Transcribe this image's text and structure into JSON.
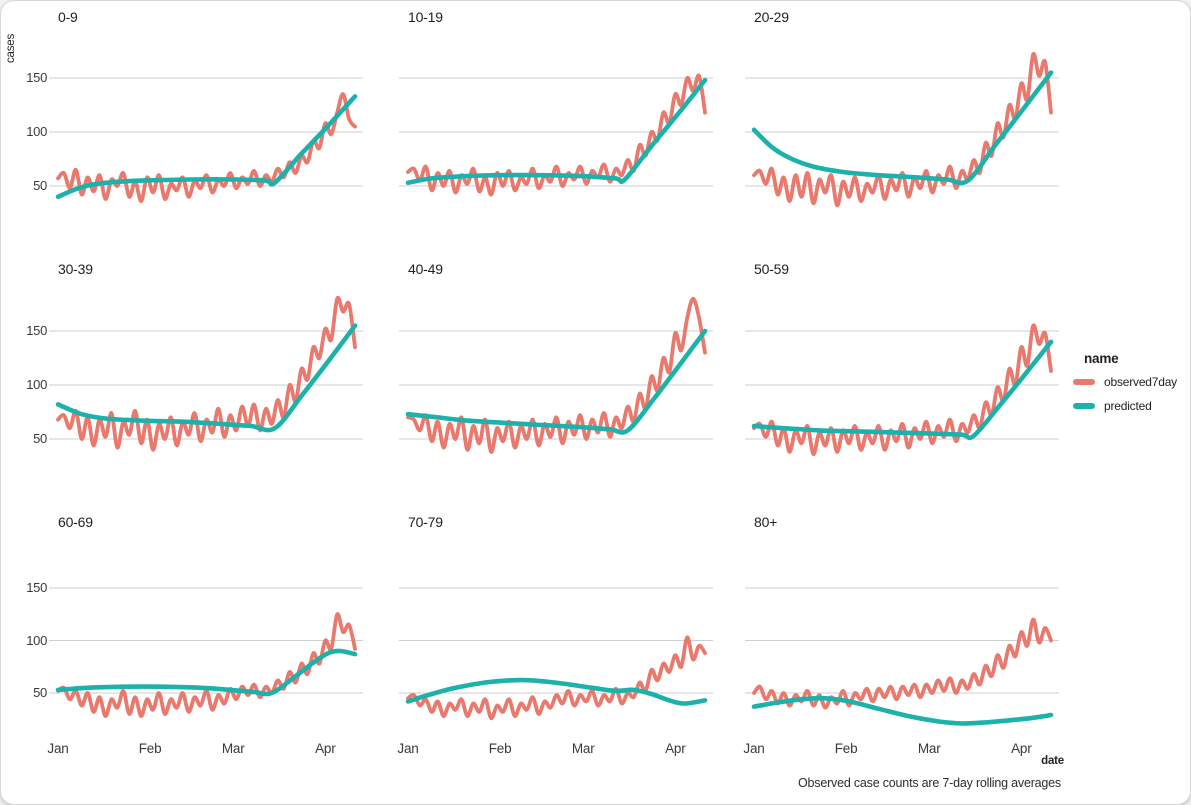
{
  "page": {
    "caption": "Observed case counts are 7-day rolling averages"
  },
  "legend": {
    "title": "name",
    "items": [
      {
        "label": "observed7day",
        "color": "#e9786d"
      },
      {
        "label": "predicted",
        "color": "#1cb1ab"
      }
    ]
  },
  "chart_data": {
    "type": "line",
    "title": "",
    "xlabel": "date",
    "ylabel": "cases",
    "x_ticks": [
      "Jan",
      "Feb",
      "Mar",
      "Apr"
    ],
    "x_tick_days": [
      0,
      31,
      59,
      90
    ],
    "y_ticks": [
      50,
      100,
      150
    ],
    "x_domain_days": [
      0,
      100
    ],
    "y_domain": [
      15,
      190
    ],
    "grid": true,
    "legend_position": "right",
    "observed_sample_interval_days": 2,
    "series_colors": {
      "observed7day": "#e9786d",
      "predicted": "#1cb1ab"
    },
    "facets": [
      {
        "label": "0-9",
        "observed7day": [
          57,
          62,
          48,
          65,
          42,
          58,
          45,
          60,
          38,
          56,
          50,
          62,
          40,
          54,
          36,
          58,
          44,
          60,
          38,
          52,
          46,
          58,
          40,
          55,
          48,
          60,
          44,
          56,
          50,
          62,
          48,
          58,
          52,
          64,
          50,
          60,
          54,
          66,
          58,
          72,
          62,
          78,
          72,
          92,
          85,
          108,
          98,
          118,
          135,
          112,
          105
        ],
        "predicted": {
          "days": [
            0,
            8,
            16,
            28,
            45,
            60,
            70,
            73,
            82,
            91,
            100
          ],
          "values": [
            40,
            49,
            53,
            55,
            56,
            56,
            55,
            53,
            80,
            106,
            133
          ]
        }
      },
      {
        "label": "10-19",
        "observed7day": [
          63,
          66,
          55,
          68,
          46,
          62,
          50,
          64,
          44,
          60,
          52,
          66,
          45,
          58,
          42,
          62,
          50,
          64,
          46,
          58,
          52,
          66,
          48,
          60,
          54,
          68,
          50,
          62,
          56,
          68,
          52,
          64,
          58,
          70,
          54,
          66,
          60,
          74,
          64,
          88,
          78,
          100,
          92,
          118,
          108,
          135,
          125,
          150,
          138,
          152,
          118
        ],
        "predicted": {
          "days": [
            0,
            8,
            18,
            30,
            45,
            60,
            70,
            73,
            82,
            91,
            100
          ],
          "values": [
            53,
            57,
            59,
            60,
            60,
            59,
            57,
            56,
            87,
            117,
            148
          ]
        }
      },
      {
        "label": "20-29",
        "observed7day": [
          60,
          64,
          52,
          66,
          42,
          58,
          36,
          60,
          40,
          62,
          34,
          56,
          44,
          60,
          32,
          54,
          40,
          58,
          36,
          52,
          44,
          60,
          38,
          56,
          46,
          62,
          40,
          58,
          48,
          64,
          44,
          60,
          52,
          68,
          48,
          64,
          56,
          74,
          62,
          90,
          78,
          108,
          95,
          125,
          112,
          145,
          130,
          172,
          152,
          165,
          118
        ],
        "predicted": {
          "days": [
            0,
            6,
            12,
            20,
            30,
            42,
            55,
            65,
            72,
            81,
            90,
            100
          ],
          "values": [
            102,
            86,
            76,
            68,
            63,
            60,
            58,
            56,
            55,
            87,
            119,
            155
          ]
        }
      },
      {
        "label": "30-39",
        "observed7day": [
          68,
          72,
          60,
          76,
          50,
          70,
          44,
          68,
          52,
          74,
          42,
          66,
          54,
          76,
          46,
          68,
          40,
          64,
          50,
          70,
          44,
          66,
          54,
          74,
          48,
          68,
          56,
          78,
          52,
          72,
          58,
          80,
          62,
          82,
          58,
          78,
          64,
          86,
          70,
          100,
          85,
          115,
          105,
          135,
          125,
          152,
          142,
          180,
          168,
          175,
          135
        ],
        "predicted": {
          "days": [
            0,
            8,
            16,
            28,
            42,
            55,
            65,
            73,
            82,
            91,
            100
          ],
          "values": [
            82,
            73,
            69,
            67,
            66,
            64,
            62,
            60,
            90,
            122,
            155
          ]
        }
      },
      {
        "label": "40-49",
        "observed7day": [
          70,
          68,
          58,
          72,
          48,
          66,
          42,
          64,
          50,
          70,
          40,
          62,
          46,
          68,
          38,
          60,
          48,
          66,
          42,
          62,
          50,
          68,
          44,
          64,
          52,
          70,
          46,
          66,
          54,
          72,
          50,
          68,
          56,
          74,
          52,
          70,
          60,
          80,
          66,
          92,
          78,
          108,
          95,
          125,
          112,
          148,
          132,
          162,
          180,
          162,
          130
        ],
        "predicted": {
          "days": [
            0,
            10,
            20,
            32,
            45,
            58,
            68,
            74,
            83,
            91,
            100
          ],
          "values": [
            73,
            70,
            67,
            65,
            63,
            61,
            59,
            58,
            88,
            117,
            150
          ]
        }
      },
      {
        "label": "50-59",
        "observed7day": [
          60,
          64,
          52,
          66,
          44,
          60,
          38,
          58,
          46,
          62,
          36,
          56,
          44,
          60,
          38,
          58,
          46,
          62,
          40,
          56,
          46,
          62,
          40,
          58,
          48,
          64,
          42,
          60,
          50,
          66,
          46,
          62,
          52,
          68,
          48,
          64,
          56,
          72,
          60,
          84,
          72,
          98,
          85,
          115,
          100,
          135,
          118,
          155,
          138,
          148,
          113
        ],
        "predicted": {
          "days": [
            0,
            10,
            22,
            35,
            48,
            60,
            70,
            74,
            83,
            91,
            100
          ],
          "values": [
            62,
            60,
            58,
            57,
            56,
            55,
            54,
            53,
            82,
            109,
            140
          ]
        }
      },
      {
        "label": "60-69",
        "observed7day": [
          52,
          55,
          44,
          52,
          38,
          50,
          32,
          46,
          28,
          44,
          36,
          52,
          30,
          46,
          28,
          44,
          34,
          50,
          30,
          44,
          36,
          50,
          32,
          46,
          38,
          52,
          34,
          48,
          40,
          54,
          44,
          56,
          48,
          58,
          46,
          56,
          50,
          62,
          54,
          70,
          60,
          78,
          68,
          88,
          78,
          100,
          92,
          125,
          108,
          115,
          92
        ],
        "predicted": {
          "days": [
            0,
            10,
            22,
            35,
            48,
            58,
            66,
            72,
            80,
            86,
            91,
            95,
            100
          ],
          "values": [
            53,
            55,
            56,
            56,
            55,
            53,
            51,
            50,
            66,
            79,
            88,
            90,
            87
          ]
        }
      },
      {
        "label": "70-79",
        "observed7day": [
          45,
          48,
          38,
          44,
          32,
          42,
          28,
          40,
          34,
          44,
          28,
          40,
          32,
          44,
          26,
          38,
          32,
          44,
          28,
          40,
          34,
          46,
          30,
          42,
          36,
          48,
          40,
          52,
          38,
          48,
          42,
          52,
          38,
          48,
          42,
          54,
          40,
          50,
          46,
          60,
          52,
          72,
          62,
          78,
          70,
          86,
          75,
          103,
          82,
          95,
          88
        ],
        "predicted": {
          "days": [
            0,
            8,
            16,
            26,
            34,
            42,
            52,
            62,
            70,
            76,
            82,
            88,
            93,
            100
          ],
          "values": [
            42,
            49,
            55,
            60,
            62,
            62,
            59,
            55,
            52,
            53,
            49,
            43,
            40,
            43
          ]
        }
      },
      {
        "label": "80+",
        "observed7day": [
          50,
          56,
          44,
          52,
          40,
          50,
          38,
          48,
          42,
          52,
          38,
          48,
          36,
          46,
          40,
          52,
          38,
          50,
          44,
          54,
          42,
          54,
          46,
          56,
          44,
          56,
          48,
          58,
          46,
          58,
          50,
          62,
          52,
          64,
          50,
          62,
          54,
          68,
          58,
          76,
          66,
          86,
          74,
          95,
          85,
          108,
          95,
          120,
          98,
          112,
          100
        ],
        "predicted": {
          "days": [
            0,
            8,
            16,
            24,
            32,
            42,
            52,
            62,
            70,
            78,
            86,
            93,
            100
          ],
          "values": [
            37,
            41,
            44,
            45,
            42,
            35,
            28,
            23,
            21,
            22,
            24,
            26,
            29
          ]
        }
      }
    ]
  }
}
